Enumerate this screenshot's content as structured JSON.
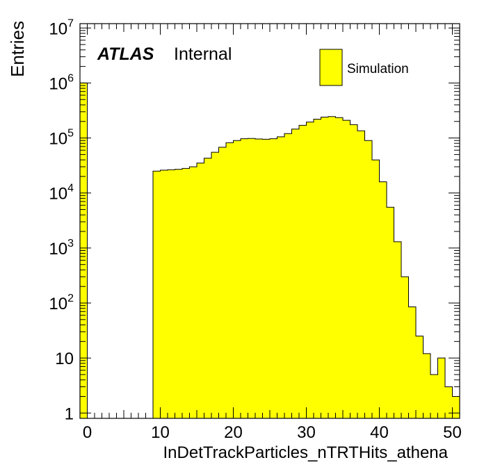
{
  "chart_data": {
    "type": "bar",
    "style": "histogram",
    "title": "",
    "xlabel": "InDetTrackParticles_nTRTHits_athena",
    "ylabel": "Entries",
    "xlim": [
      -1,
      51
    ],
    "ylim": [
      0.8,
      12000000
    ],
    "yscale": "log",
    "grid": false,
    "bin_width": 1,
    "x_ticks": [
      "0",
      "10",
      "20",
      "30",
      "40",
      "50"
    ],
    "y_ticks": [
      {
        "base": "1",
        "exp": ""
      },
      {
        "base": "10",
        "exp": ""
      },
      {
        "base": "10",
        "exp": "2"
      },
      {
        "base": "10",
        "exp": "3"
      },
      {
        "base": "10",
        "exp": "4"
      },
      {
        "base": "10",
        "exp": "5"
      },
      {
        "base": "10",
        "exp": "6"
      },
      {
        "base": "10",
        "exp": "7"
      }
    ],
    "experiment_label": "ATLAS",
    "status_label": "Internal",
    "legend": {
      "position": "top-right",
      "entries": [
        "Simulation"
      ]
    },
    "series": [
      {
        "name": "Simulation",
        "color": "#ffff00",
        "edge_color": "#000000",
        "bins_low_edge": [
          -1,
          0,
          1,
          2,
          3,
          4,
          5,
          6,
          7,
          8,
          9,
          10,
          11,
          12,
          13,
          14,
          15,
          16,
          17,
          18,
          19,
          20,
          21,
          22,
          23,
          24,
          25,
          26,
          27,
          28,
          29,
          30,
          31,
          32,
          33,
          34,
          35,
          36,
          37,
          38,
          39,
          40,
          41,
          42,
          43,
          44,
          45,
          46,
          47,
          48,
          49,
          50
        ],
        "values": [
          1000000,
          0,
          0,
          0,
          0,
          0,
          0,
          0,
          0,
          0,
          25000,
          26000,
          26500,
          27000,
          28000,
          30000,
          35000,
          43000,
          55000,
          68000,
          82000,
          90000,
          97000,
          98000,
          96000,
          95000,
          97000,
          105000,
          120000,
          145000,
          170000,
          195000,
          220000,
          240000,
          245000,
          235000,
          210000,
          175000,
          135000,
          90000,
          40000,
          16000,
          5500,
          1300,
          300,
          85,
          25,
          12,
          5,
          10,
          3,
          2
        ]
      }
    ]
  }
}
